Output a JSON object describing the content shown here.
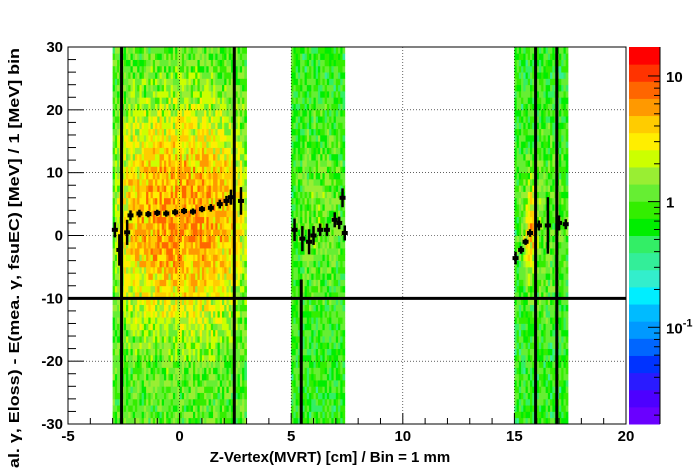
{
  "chart_data": {
    "type": "heatmap",
    "xlabel": "Z-Vertex(MVRT) [cm] / Bin = 1 mm",
    "ylabel": "al. γ, Eloss) - E(mea.  γ, fsuEC) [MeV] / 1 [MeV] bin",
    "xlim": [
      -5,
      20
    ],
    "ylim": [
      -30,
      30
    ],
    "zlim": [
      0.017,
      17
    ],
    "z_scale": "log",
    "x_bin_width": 0.1,
    "y_bin_width": 1,
    "grid": true,
    "x_ticks": [
      "-5",
      "0",
      "5",
      "10",
      "15",
      "20"
    ],
    "x_tick_values": [
      -5,
      0,
      5,
      10,
      15,
      20
    ],
    "y_ticks": [
      "-30",
      "-20",
      "-10",
      "0",
      "10",
      "20",
      "30"
    ],
    "y_tick_values": [
      -30,
      -20,
      -10,
      0,
      10,
      20,
      30
    ],
    "z_ticks": [
      {
        "value": 10,
        "label": "10"
      },
      {
        "value": 1,
        "label": "1"
      },
      {
        "value": 0.1,
        "base": "10",
        "exp": "-1"
      }
    ],
    "filled_x_ranges": [
      {
        "x": [
          -3.0,
          3.0
        ],
        "peak": 6,
        "edge": 1
      },
      {
        "x": [
          5.0,
          7.4
        ],
        "peak": 1.3,
        "edge": 0.8
      },
      {
        "x": [
          15.0,
          17.4
        ],
        "peak": 1.2,
        "edge": 0.8,
        "hot_x": 15.7
      }
    ],
    "reference_lines": {
      "horizontal": [
        {
          "y": -10
        }
      ],
      "vertical": [
        {
          "x": -2.6,
          "y_from": -30,
          "y_to": 30
        },
        {
          "x": 2.45,
          "y_from": -30,
          "y_to": 30
        },
        {
          "x": 5.45,
          "y_from": -30,
          "y_to": -7
        },
        {
          "x": 15.95,
          "y_from": -30,
          "y_to": 30
        },
        {
          "x": 16.9,
          "y_from": -30,
          "y_to": 30
        }
      ]
    },
    "profile": [
      {
        "x": -2.9,
        "y": 0.9,
        "err": 1.2
      },
      {
        "x": -2.7,
        "y": -2.3,
        "err": 2.5
      },
      {
        "x": -2.35,
        "y": 0.5,
        "err": 2.0
      },
      {
        "x": -2.2,
        "y": 3.2,
        "err": 0.8
      },
      {
        "x": -1.8,
        "y": 3.5,
        "err": 0.6
      },
      {
        "x": -1.4,
        "y": 3.4,
        "err": 0.5
      },
      {
        "x": -1.0,
        "y": 3.6,
        "err": 0.5
      },
      {
        "x": -0.6,
        "y": 3.5,
        "err": 0.5
      },
      {
        "x": -0.2,
        "y": 3.7,
        "err": 0.5
      },
      {
        "x": 0.2,
        "y": 3.9,
        "err": 0.5
      },
      {
        "x": 0.6,
        "y": 3.8,
        "err": 0.5
      },
      {
        "x": 1.0,
        "y": 4.2,
        "err": 0.5
      },
      {
        "x": 1.4,
        "y": 4.4,
        "err": 0.6
      },
      {
        "x": 1.8,
        "y": 5.0,
        "err": 0.7
      },
      {
        "x": 2.1,
        "y": 5.5,
        "err": 0.8
      },
      {
        "x": 2.3,
        "y": 6.1,
        "err": 1.2
      },
      {
        "x": 2.75,
        "y": 5.5,
        "err": 2.2
      },
      {
        "x": 5.15,
        "y": 0.9,
        "err": 1.8
      },
      {
        "x": 5.5,
        "y": -0.5,
        "err": 2.0
      },
      {
        "x": 5.8,
        "y": -1.0,
        "err": 2.0
      },
      {
        "x": 6.0,
        "y": 0.0,
        "err": 1.5
      },
      {
        "x": 6.3,
        "y": 0.9,
        "err": 1.0
      },
      {
        "x": 6.6,
        "y": 0.9,
        "err": 1.0
      },
      {
        "x": 6.95,
        "y": 2.5,
        "err": 1.2
      },
      {
        "x": 7.15,
        "y": 2.0,
        "err": 1.0
      },
      {
        "x": 7.3,
        "y": 6.0,
        "err": 1.5
      },
      {
        "x": 7.4,
        "y": 0.4,
        "err": 1.2
      },
      {
        "x": 15.05,
        "y": -3.6,
        "err": 1.0
      },
      {
        "x": 15.3,
        "y": -2.3,
        "err": 0.6
      },
      {
        "x": 15.5,
        "y": -1.0,
        "err": 0.5
      },
      {
        "x": 15.7,
        "y": 0.4,
        "err": 0.6
      },
      {
        "x": 16.1,
        "y": 1.6,
        "err": 0.8
      },
      {
        "x": 16.5,
        "y": 1.6,
        "err": 4.5
      },
      {
        "x": 17.0,
        "y": 2.0,
        "err": 1.2
      },
      {
        "x": 17.3,
        "y": 1.8,
        "err": 0.8
      }
    ],
    "palette": [
      "#6a00ff",
      "#4d00ff",
      "#2a1bff",
      "#0033ff",
      "#0066ff",
      "#0099ff",
      "#00bbff",
      "#00eeff",
      "#33eecc",
      "#33ee99",
      "#33ee66",
      "#00ee00",
      "#33ee00",
      "#66ee33",
      "#99ee33",
      "#ccff00",
      "#ffee00",
      "#ffcc00",
      "#ff9900",
      "#ff6600",
      "#ff3300",
      "#ff0000"
    ]
  }
}
